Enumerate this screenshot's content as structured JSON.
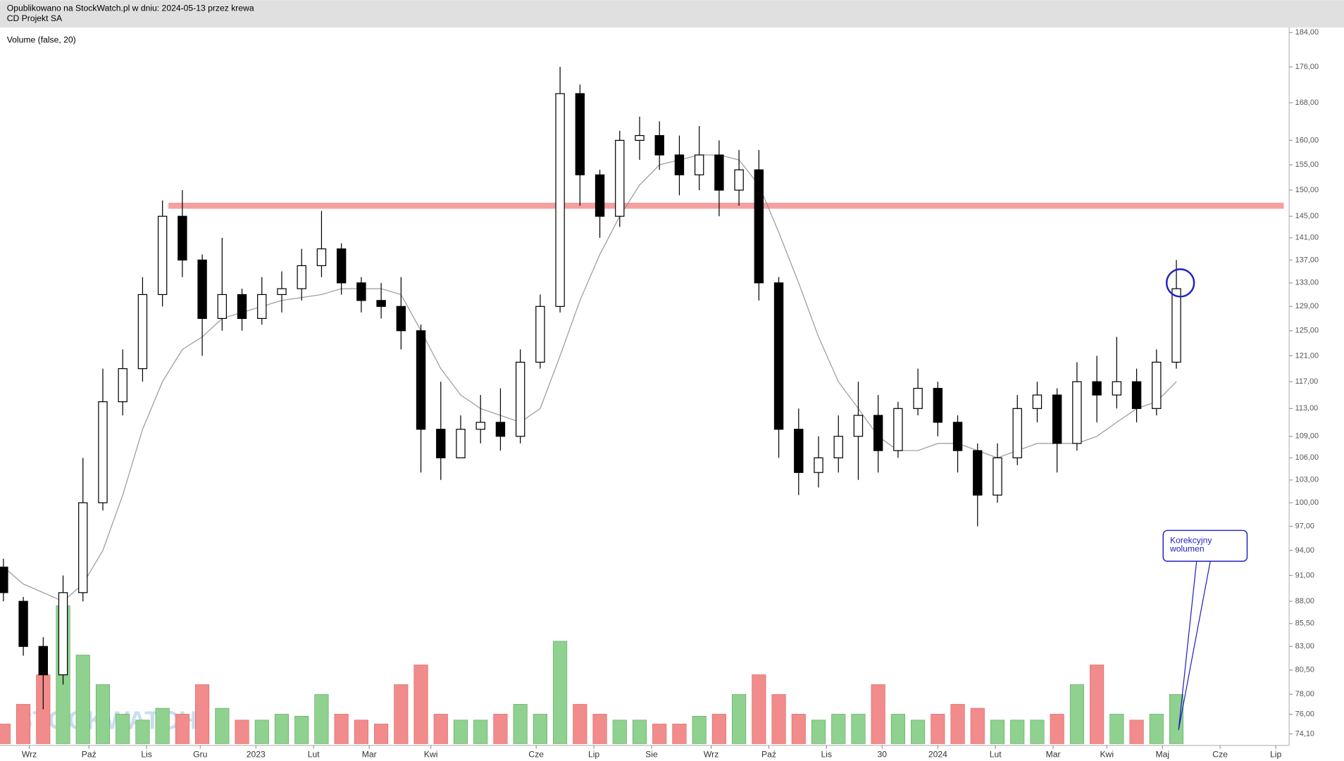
{
  "chart_data": {
    "type": "candlestick",
    "title": "Opublikowano na StockWatch.pl w dniu: 2024-05-13 przez krewa",
    "subtitle": "CD Projekt SA",
    "indicator_label": "Volume (false, 20)",
    "watermark": "STOCKWATCH",
    "log_scale": true,
    "ylim": [
      73,
      185
    ],
    "yticks": [
      {
        "value": 184,
        "label": "184,00"
      },
      {
        "value": 176,
        "label": "176,00"
      },
      {
        "value": 168,
        "label": "168,00"
      },
      {
        "value": 160,
        "label": "160,00"
      },
      {
        "value": 155,
        "label": "155,00"
      },
      {
        "value": 150,
        "label": "150,00"
      },
      {
        "value": 145,
        "label": "145,00"
      },
      {
        "value": 141,
        "label": "141,00"
      },
      {
        "value": 137,
        "label": "137,00"
      },
      {
        "value": 133,
        "label": "133,00"
      },
      {
        "value": 129,
        "label": "129,00"
      },
      {
        "value": 125,
        "label": "125,00"
      },
      {
        "value": 121,
        "label": "121,00"
      },
      {
        "value": 117,
        "label": "117,00"
      },
      {
        "value": 113,
        "label": "113,00"
      },
      {
        "value": 109,
        "label": "109,00"
      },
      {
        "value": 106,
        "label": "106,00"
      },
      {
        "value": 103,
        "label": "103,00"
      },
      {
        "value": 100,
        "label": "100,00"
      },
      {
        "value": 97,
        "label": "97,00"
      },
      {
        "value": 94,
        "label": "94,00"
      },
      {
        "value": 91,
        "label": "91,00"
      },
      {
        "value": 88,
        "label": "88,00"
      },
      {
        "value": 85.5,
        "label": "85,50"
      },
      {
        "value": 83,
        "label": "83,00"
      },
      {
        "value": 80.5,
        "label": "80,50"
      },
      {
        "value": 78,
        "label": "78,00"
      },
      {
        "value": 76,
        "label": "76,00"
      },
      {
        "value": 74.1,
        "label": "74,10"
      }
    ],
    "xlim": [
      0,
      64.5
    ],
    "xticks": [
      {
        "value": 1.3,
        "label": "Wrz"
      },
      {
        "value": 4.3,
        "label": "Paź"
      },
      {
        "value": 7.2,
        "label": "Lis"
      },
      {
        "value": 9.9,
        "label": "Gru"
      },
      {
        "value": 12.7,
        "label": "2023"
      },
      {
        "value": 15.6,
        "label": "Lut"
      },
      {
        "value": 18.4,
        "label": "Mar"
      },
      {
        "value": 21.5,
        "label": "Kwi"
      },
      {
        "value": 26.8,
        "label": "Cze"
      },
      {
        "value": 29.7,
        "label": "Lip"
      },
      {
        "value": 32.6,
        "label": "Sie"
      },
      {
        "value": 35.6,
        "label": "Wrz"
      },
      {
        "value": 38.5,
        "label": "Paź"
      },
      {
        "value": 41.4,
        "label": "Lis"
      },
      {
        "value": 44.2,
        "label": "30"
      },
      {
        "value": 47.0,
        "label": "2024"
      },
      {
        "value": 49.9,
        "label": "Lut"
      },
      {
        "value": 52.8,
        "label": "Mar"
      },
      {
        "value": 55.5,
        "label": "Kwi"
      },
      {
        "value": 58.3,
        "label": "Maj"
      },
      {
        "value": 61.2,
        "label": "Cze"
      },
      {
        "value": 64.0,
        "label": "Lip"
      }
    ],
    "open": [
      92,
      88,
      83,
      80,
      89,
      100,
      114,
      119,
      131,
      145,
      137,
      127,
      131,
      127,
      131,
      132,
      136,
      139,
      133,
      130,
      129,
      125,
      110,
      106,
      110,
      111,
      109,
      120,
      129,
      170,
      153,
      145,
      160,
      161,
      157,
      153,
      157,
      150,
      154,
      133,
      110,
      104,
      106,
      109,
      112,
      107,
      113,
      116,
      111,
      107,
      101,
      106,
      113,
      115,
      108,
      117,
      115,
      117,
      113,
      120
    ],
    "high": [
      93,
      88.5,
      84,
      91,
      106,
      119,
      122,
      134,
      148,
      150,
      138,
      141,
      132,
      134,
      135,
      139,
      146,
      140,
      134,
      133,
      134,
      126,
      117,
      112,
      115,
      116,
      122,
      131,
      176,
      172,
      154,
      162,
      165,
      164,
      161,
      163,
      160,
      158,
      158,
      134,
      113,
      109,
      112,
      117,
      115,
      114,
      119,
      117,
      112,
      108,
      108,
      115,
      117,
      116,
      120,
      121,
      124,
      119,
      122,
      137
    ],
    "low": [
      88,
      82,
      76.5,
      79,
      88,
      99,
      112,
      117,
      129,
      134,
      121,
      125,
      125,
      126,
      128,
      130,
      134,
      131,
      128,
      127,
      122,
      104,
      103,
      106,
      108,
      107,
      108,
      119,
      128,
      147,
      141,
      143,
      156,
      154,
      149,
      150,
      145,
      147,
      130,
      106,
      101,
      102,
      104,
      103,
      104,
      106,
      112,
      109,
      104,
      97,
      100,
      105,
      111,
      104,
      107,
      111,
      113,
      111,
      112,
      119
    ],
    "close": [
      89,
      83,
      80,
      89,
      100,
      114,
      119,
      131,
      145,
      137,
      127,
      131,
      127,
      131,
      132,
      136,
      139,
      133,
      130,
      129,
      125,
      110,
      106,
      110,
      111,
      109,
      120,
      129,
      170,
      153,
      145,
      160,
      161,
      157,
      153,
      157,
      150,
      154,
      133,
      110,
      104,
      106,
      109,
      112,
      107,
      113,
      116,
      111,
      107,
      101,
      106,
      113,
      115,
      108,
      117,
      115,
      117,
      113,
      120,
      132
    ],
    "up_color": "#ffffff",
    "down_color": "#000000",
    "ma": {
      "color": "#999999",
      "values": [
        92,
        90,
        89,
        88,
        90,
        94,
        101,
        110,
        117,
        122,
        124,
        127,
        128,
        129,
        130,
        130.5,
        131,
        132,
        132,
        132,
        131,
        125,
        119,
        115,
        113,
        112,
        111,
        113,
        121,
        130,
        138,
        145,
        151,
        155,
        156,
        157,
        157,
        156,
        151,
        142,
        133,
        124,
        117,
        113,
        109,
        107,
        107,
        108,
        108,
        107,
        106,
        107,
        108,
        108,
        108,
        109,
        111,
        113,
        114,
        117
      ]
    },
    "volume": {
      "vlim": [
        0,
        100
      ],
      "up_color": "#8fd18f",
      "down_color": "#f28b8b",
      "values": [
        10,
        20,
        35,
        70,
        45,
        30,
        15,
        12,
        18,
        15,
        30,
        18,
        12,
        12,
        15,
        14,
        25,
        15,
        12,
        10,
        30,
        40,
        15,
        12,
        12,
        15,
        20,
        15,
        52,
        20,
        15,
        12,
        12,
        10,
        10,
        14,
        15,
        25,
        35,
        25,
        15,
        12,
        15,
        15,
        30,
        15,
        12,
        15,
        20,
        18,
        12,
        12,
        12,
        15,
        30,
        40,
        15,
        12,
        15,
        25
      ]
    },
    "resistance": {
      "y": 147,
      "x_from": 8.3,
      "x_to": 64.4,
      "color": "#f4a0a0"
    },
    "circle": {
      "x": 59.2,
      "y": 133,
      "color": "#2020c0"
    },
    "callout": {
      "text": [
        "Korekcyjny",
        "wolumen"
      ],
      "color": "#2020c0"
    }
  }
}
